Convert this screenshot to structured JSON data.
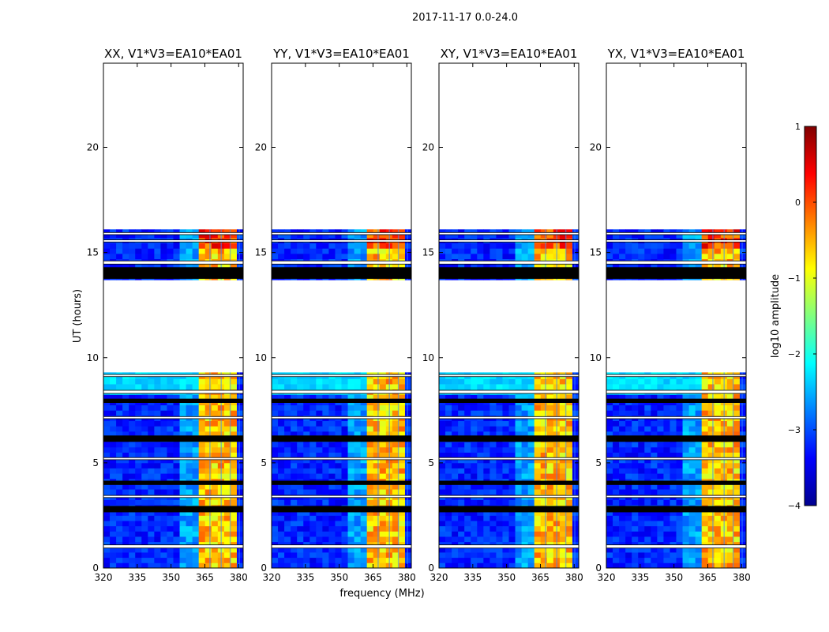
{
  "figure": {
    "suptitle": "2017-11-17 0.0-24.0",
    "xlabel": "frequency (MHz)",
    "ylabel": "UT (hours)"
  },
  "chart_data": {
    "type": "heatmap",
    "x_range": [
      320,
      382
    ],
    "y_range": [
      0,
      24
    ],
    "xticks": [
      320,
      335,
      350,
      365,
      380
    ],
    "yticks": [
      0,
      5,
      10,
      15,
      20
    ],
    "panels": [
      {
        "title": "XX, V1*V3=EA10*EA01"
      },
      {
        "title": "YY, V1*V3=EA10*EA01"
      },
      {
        "title": "XY, V1*V3=EA10*EA01"
      },
      {
        "title": "YX, V1*V3=EA10*EA01"
      }
    ],
    "data_rows_hours": [
      [
        0.0,
        9.3
      ],
      [
        13.7,
        16.1
      ]
    ],
    "flagged_rows_hours": [
      [
        2.65,
        2.95
      ],
      [
        3.95,
        4.15
      ],
      [
        6.0,
        6.3
      ],
      [
        7.85,
        8.05
      ],
      [
        13.75,
        14.3
      ]
    ],
    "gap_rows_hours": [
      [
        0.95,
        1.1
      ],
      [
        3.35,
        3.45
      ],
      [
        5.15,
        5.25
      ],
      [
        7.1,
        7.2
      ],
      [
        8.3,
        8.45
      ],
      [
        9.1,
        9.2
      ],
      [
        14.45,
        14.6
      ],
      [
        15.5,
        15.6
      ],
      [
        15.85,
        15.95
      ]
    ],
    "rfi_band_mhz": [
      362,
      380
    ],
    "rfi_subbands_mhz": [
      [
        362,
        367
      ],
      [
        367.5,
        372
      ],
      [
        372.5,
        376
      ],
      [
        376.5,
        380
      ]
    ],
    "colorbar": {
      "label": "log10 amplitude",
      "range": [
        -4,
        1
      ],
      "ticks": [
        "1",
        "0",
        "−1",
        "−2",
        "−3",
        "−4"
      ],
      "colormap": "jet"
    }
  },
  "colors": {
    "background": "#ffffff",
    "axes": "#000000",
    "flagged": "#000000"
  }
}
